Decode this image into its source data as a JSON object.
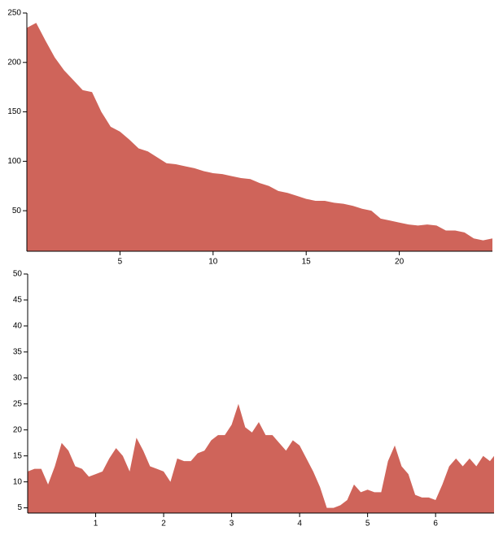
{
  "chart_data": [
    {
      "type": "area",
      "color": "#cf645a",
      "x": [
        0,
        0.5,
        1,
        1.5,
        2,
        2.5,
        3,
        3.5,
        4,
        4.5,
        5,
        5.5,
        6,
        6.5,
        7,
        7.5,
        8,
        8.5,
        9,
        9.5,
        10,
        10.5,
        11,
        11.5,
        12,
        12.5,
        13,
        13.5,
        14,
        14.5,
        15,
        15.5,
        16,
        16.5,
        17,
        17.5,
        18,
        18.5,
        19,
        19.5,
        20,
        20.5,
        21,
        21.5,
        22,
        22.5,
        23,
        23.5,
        24,
        24.5,
        25
      ],
      "values": [
        235,
        240,
        222,
        205,
        192,
        182,
        172,
        170,
        150,
        135,
        130,
        122,
        113,
        110,
        104,
        98,
        97,
        95,
        93,
        90,
        88,
        87,
        85,
        83,
        82,
        78,
        75,
        70,
        68,
        65,
        62,
        60,
        60,
        58,
        57,
        55,
        52,
        50,
        42,
        40,
        38,
        36,
        35,
        36,
        35,
        30,
        30,
        28,
        22,
        20,
        22
      ],
      "xlim": [
        0,
        25
      ],
      "ylim": [
        9,
        250
      ],
      "xticks": [
        5,
        10,
        15,
        20
      ],
      "yticks": [
        50,
        100,
        150,
        200,
        250
      ]
    },
    {
      "type": "area",
      "color": "#cf645a",
      "x": [
        0,
        0.1,
        0.2,
        0.3,
        0.4,
        0.5,
        0.6,
        0.7,
        0.8,
        0.9,
        1,
        1.1,
        1.2,
        1.3,
        1.4,
        1.5,
        1.6,
        1.7,
        1.8,
        1.9,
        2,
        2.1,
        2.2,
        2.3,
        2.4,
        2.5,
        2.6,
        2.7,
        2.8,
        2.9,
        3,
        3.1,
        3.2,
        3.3,
        3.4,
        3.5,
        3.6,
        3.7,
        3.8,
        3.9,
        4,
        4.1,
        4.2,
        4.3,
        4.4,
        4.5,
        4.6,
        4.7,
        4.8,
        4.9,
        5,
        5.1,
        5.2,
        5.3,
        5.4,
        5.5,
        5.6,
        5.7,
        5.8,
        5.9,
        6,
        6.1,
        6.2,
        6.3,
        6.4,
        6.5,
        6.6,
        6.7,
        6.8,
        6.86
      ],
      "values": [
        12,
        12.5,
        12.5,
        9.5,
        13,
        17.5,
        16,
        13,
        12.5,
        11,
        11.5,
        12,
        14.5,
        16.5,
        15,
        12,
        18.5,
        16,
        13,
        12.5,
        12,
        10,
        14.5,
        14,
        14,
        15.5,
        16,
        18,
        19,
        19,
        21,
        25,
        20.5,
        19.5,
        21.5,
        19,
        19,
        17.5,
        16,
        18,
        17,
        14.5,
        12,
        9,
        5,
        5,
        5.5,
        6.5,
        9.5,
        8,
        8.5,
        8,
        8,
        14,
        17,
        13,
        11.5,
        7.5,
        7,
        7,
        6.5,
        9.5,
        13,
        14.5,
        13,
        14.5,
        13,
        15,
        14,
        15
      ],
      "xlim": [
        0,
        6.86
      ],
      "ylim": [
        4,
        50
      ],
      "xticks": [
        1,
        2,
        3,
        4,
        5,
        6
      ],
      "yticks": [
        5,
        10,
        15,
        20,
        25,
        30,
        35,
        40,
        45,
        50
      ]
    }
  ]
}
